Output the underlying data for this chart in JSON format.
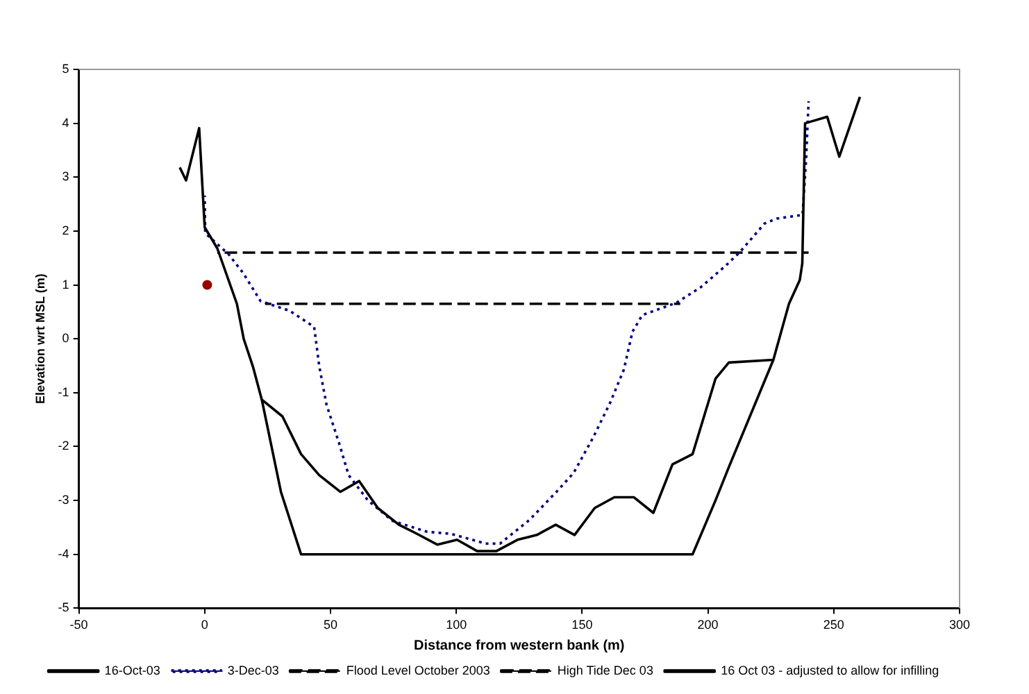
{
  "chart_data": {
    "type": "line",
    "xlabel": "Distance from western bank (m)",
    "ylabel": "Elevation wrt MSL (m)",
    "xlim": [
      -50,
      300
    ],
    "ylim": [
      -5,
      5
    ],
    "xticks": [
      -50,
      0,
      50,
      100,
      150,
      200,
      250,
      300
    ],
    "yticks": [
      -5,
      -4,
      -3,
      -2,
      -1,
      0,
      1,
      2,
      3,
      4,
      5
    ],
    "grid": false,
    "legend": "bottom",
    "marker": "none",
    "series": [
      {
        "name": "16-Oct-03",
        "color": "#000000",
        "line_style": "solid",
        "x": [
          -9.9,
          -7.4,
          -2.2,
          0,
          5,
          12.8,
          15.5,
          19.2,
          22.7,
          30.9,
          38.3,
          45.5,
          53.9,
          61.4,
          68.8,
          77.2,
          84.4,
          92.5,
          100.3,
          108.3,
          115.9,
          124.3,
          132,
          139.5,
          147,
          155,
          162.8,
          170.5,
          178.3,
          185.9,
          193.9,
          203,
          208.3,
          226,
          232.2,
          236.5,
          237.5,
          238.6,
          247.4,
          252.2,
          260.4
        ],
        "values": [
          3.18,
          2.94,
          3.91,
          2.07,
          1.68,
          0.65,
          0,
          -0.52,
          -1.13,
          -1.44,
          -2.14,
          -2.53,
          -2.84,
          -2.64,
          -3.14,
          -3.45,
          -3.62,
          -3.82,
          -3.73,
          -3.94,
          -3.94,
          -3.73,
          -3.64,
          -3.45,
          -3.64,
          -3.14,
          -2.94,
          -2.94,
          -3.23,
          -2.33,
          -2.14,
          -0.74,
          -0.44,
          -0.39,
          0.65,
          1.09,
          1.4,
          4.0,
          4.12,
          3.38,
          4.49
        ]
      },
      {
        "name": "3-Dec-03",
        "color": "#000080",
        "line_style": "dotted",
        "x": [
          0,
          0.2,
          9.5,
          15.3,
          22.2,
          33.8,
          43.5,
          45.5,
          48.4,
          53.3,
          57.2,
          64.9,
          74.7,
          88.3,
          98,
          111.6,
          117.4,
          129.1,
          139.8,
          146.6,
          154.4,
          161.2,
          166.6,
          170,
          173.9,
          187.5,
          197.2,
          206.9,
          212.7,
          222.5,
          227.3,
          237.6,
          239,
          240
        ],
        "values": [
          2.66,
          1.96,
          1.57,
          1.22,
          0.7,
          0.52,
          0.22,
          -0.5,
          -1.22,
          -1.92,
          -2.53,
          -3.0,
          -3.38,
          -3.58,
          -3.62,
          -3.8,
          -3.8,
          -3.36,
          -2.84,
          -2.49,
          -1.83,
          -1.18,
          -0.57,
          0.13,
          0.44,
          0.67,
          0.96,
          1.35,
          1.61,
          2.14,
          2.23,
          2.3,
          3.32,
          4.41
        ]
      },
      {
        "name": "Flood Level October 2003",
        "color": "#000000",
        "line_style": "dashed",
        "x": [
          5,
          240
        ],
        "values": [
          1.6,
          1.6
        ]
      },
      {
        "name": "High Tide Dec 03",
        "color": "#000000",
        "line_style": "dashed",
        "x": [
          24,
          189
        ],
        "values": [
          0.65,
          0.65
        ]
      },
      {
        "name": "16 Oct 03 - adjusted to allow for infilling",
        "color": "#000000",
        "line_style": "solid",
        "x": [
          22.7,
          30.3,
          38.3,
          193.9,
          203,
          208.5,
          226
        ],
        "values": [
          -1.13,
          -2.84,
          -4.0,
          -4.0,
          -3.0,
          -2.36,
          -0.39
        ]
      },
      {
        "type": "scatter",
        "color": "#990000",
        "marker": "circle",
        "x": [
          1
        ],
        "values": [
          1
        ]
      }
    ]
  }
}
